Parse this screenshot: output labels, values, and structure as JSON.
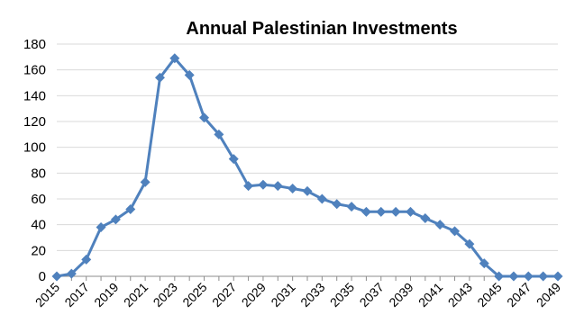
{
  "chart_data": {
    "type": "line",
    "title": "Annual Palestinian Investments",
    "xlabel": "",
    "ylabel": "",
    "ylim": [
      0,
      180
    ],
    "yticks": [
      0,
      20,
      40,
      60,
      80,
      100,
      120,
      140,
      160,
      180
    ],
    "grid": true,
    "legend": "none",
    "x": [
      2015,
      2016,
      2017,
      2018,
      2019,
      2020,
      2021,
      2022,
      2023,
      2024,
      2025,
      2026,
      2027,
      2028,
      2029,
      2030,
      2031,
      2032,
      2033,
      2034,
      2035,
      2036,
      2037,
      2038,
      2039,
      2040,
      2041,
      2042,
      2043,
      2044,
      2045,
      2046,
      2047,
      2048,
      2049
    ],
    "x_tick_labels": [
      "2015",
      "2017",
      "2019",
      "2021",
      "2023",
      "2025",
      "2027",
      "2029",
      "2031",
      "2033",
      "2035",
      "2037",
      "2039",
      "2041",
      "2043",
      "2045",
      "2047",
      "2049"
    ],
    "series": [
      {
        "values": [
          0,
          2,
          13,
          38,
          44,
          52,
          73,
          154,
          169,
          156,
          123,
          110,
          91,
          70,
          71,
          70,
          68,
          66,
          60,
          56,
          54,
          50,
          50,
          50,
          50,
          45,
          40,
          35,
          25,
          10,
          0,
          0,
          0,
          0,
          0
        ],
        "color": "#4f81bd",
        "marker": "diamond"
      }
    ]
  }
}
